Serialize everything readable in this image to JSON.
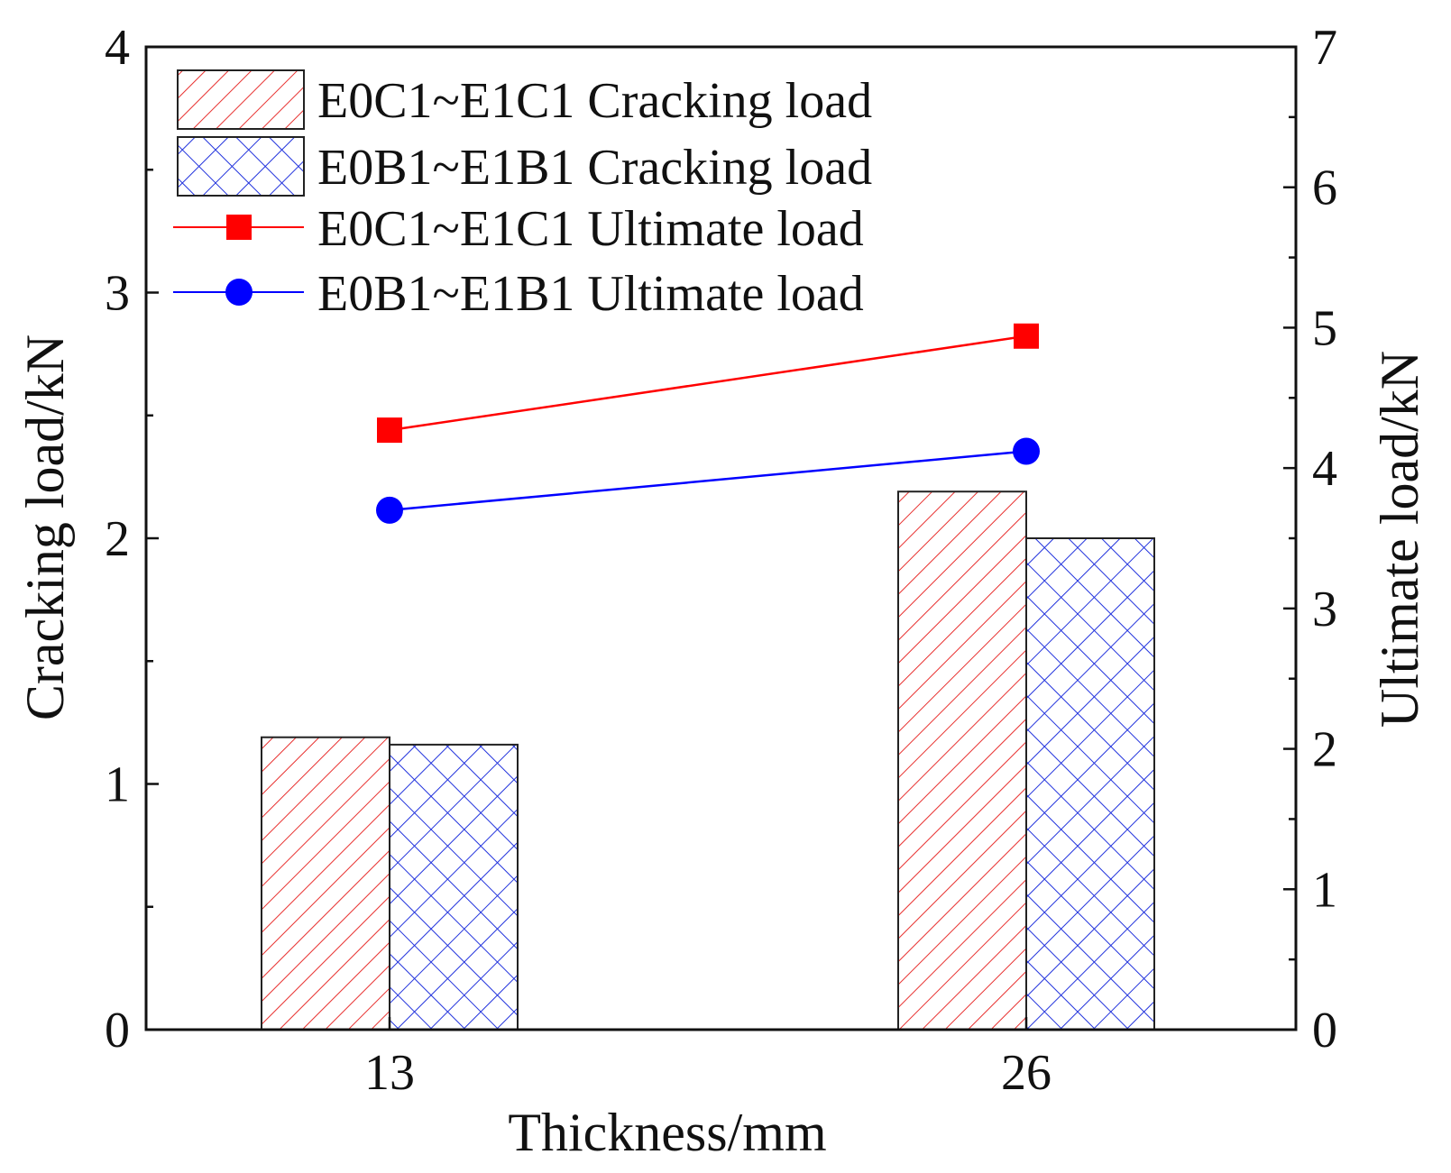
{
  "chart_data": {
    "type": "bar",
    "categories": [
      "13",
      "26"
    ],
    "xlabel": "Thickness/mm",
    "ylabel": "Cracking load/kN",
    "y2label": "Ultimate load/kN",
    "ylim": [
      0,
      4
    ],
    "y2lim": [
      0,
      7
    ],
    "yticks": [
      "0",
      "1",
      "2",
      "3",
      "4"
    ],
    "y2ticks": [
      "0",
      "1",
      "2",
      "3",
      "4",
      "5",
      "6",
      "7"
    ],
    "bar_series": [
      {
        "name": "E0C1~E1C1 Cracking load",
        "values": [
          1.19,
          2.19
        ],
        "color": "#e8302f",
        "pattern": "diagonal-hatch"
      },
      {
        "name": "E0B1~E1B1 Cracking load",
        "values": [
          1.16,
          2.0
        ],
        "color": "#2233dd",
        "pattern": "cross-hatch"
      }
    ],
    "line_series": [
      {
        "name": "E0C1~E1C1 Ultimate load",
        "values": [
          4.27,
          4.94
        ],
        "color": "#ff0000",
        "marker": "square",
        "axis": "right"
      },
      {
        "name": "E0B1~E1B1 Ultimate load",
        "values": [
          3.7,
          4.12
        ],
        "color": "#0000ff",
        "marker": "circle",
        "axis": "right"
      }
    ],
    "legend_position": "top-left"
  }
}
